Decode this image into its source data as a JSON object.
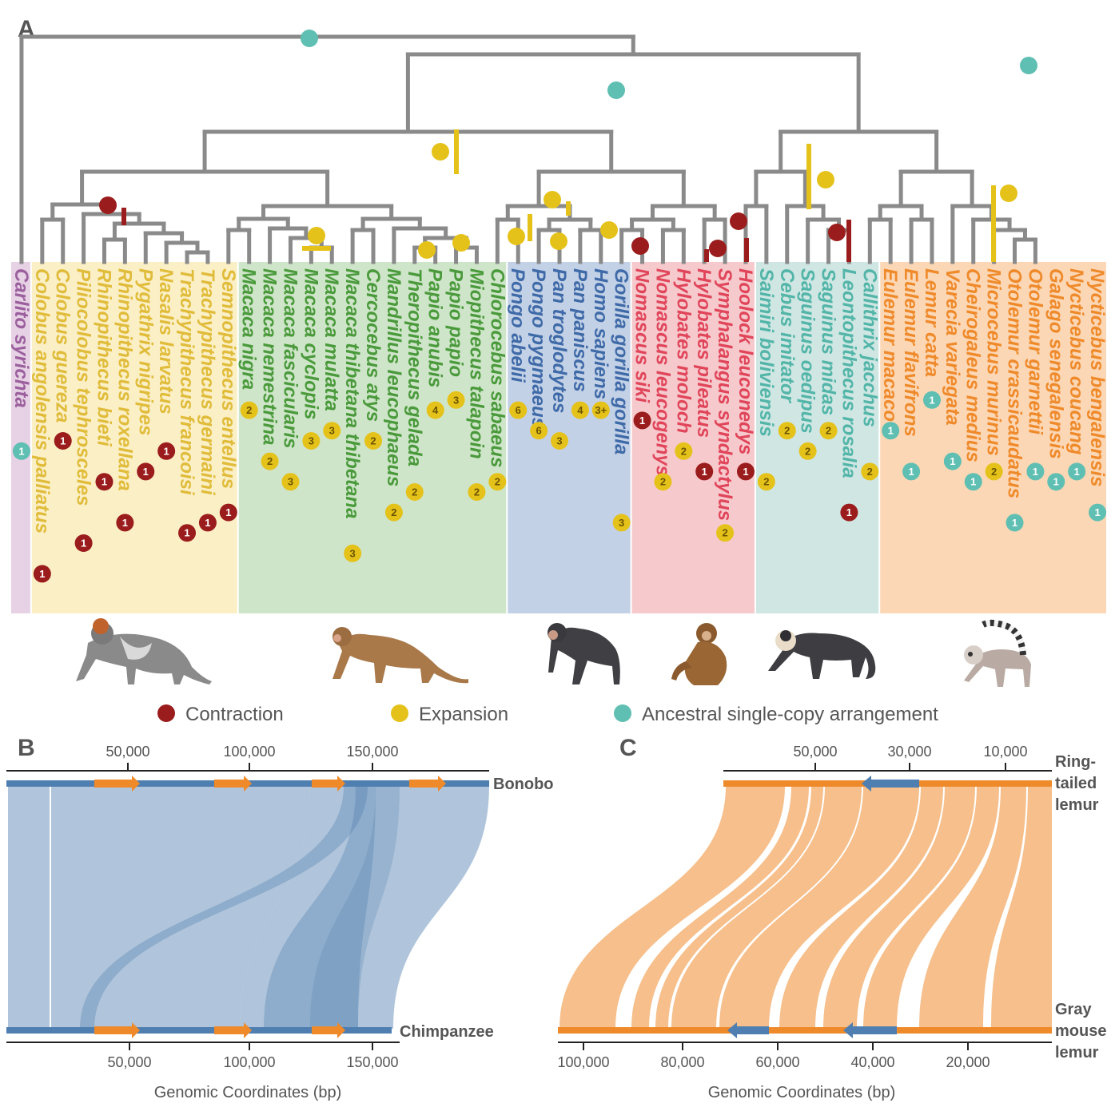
{
  "panels": {
    "a": "A",
    "b": "B",
    "c": "C"
  },
  "colors": {
    "tree": "#8a8a8a",
    "contraction": "#9b1c1c",
    "expansion": "#e5c21a",
    "ancestral": "#5fbfb2",
    "blue": "#4f7fb0",
    "orange": "#ef8a2b"
  },
  "clades": [
    {
      "color": "#9b5f9e",
      "bg": "#e6d2e4",
      "species": [
        {
          "name": "Carlito syrichta",
          "badge": {
            "type": "ancestral",
            "n": "1"
          }
        }
      ]
    },
    {
      "color": "#e0bc3a",
      "bg": "#fbefc6",
      "species": [
        {
          "name": "Colobus angolensis palliatus",
          "badge": {
            "type": "contraction",
            "n": "1"
          }
        },
        {
          "name": "Colobus guereza",
          "badge": {
            "type": "contraction",
            "n": "1"
          }
        },
        {
          "name": "Piliocolobus tephrosceles",
          "badge": {
            "type": "contraction",
            "n": "1"
          }
        },
        {
          "name": "Rhinopithecus bieti",
          "badge": {
            "type": "contraction",
            "n": "1"
          }
        },
        {
          "name": "Rhinopithecus roxellana",
          "badge": {
            "type": "contraction",
            "n": "1"
          }
        },
        {
          "name": "Pygathrix nigripes",
          "badge": {
            "type": "contraction",
            "n": "1"
          }
        },
        {
          "name": "Nasalis larvatus",
          "badge": {
            "type": "contraction",
            "n": "1"
          }
        },
        {
          "name": "Trachypithecus francoisi",
          "badge": {
            "type": "contraction",
            "n": "1"
          }
        },
        {
          "name": "Trachypithecus germaini",
          "badge": {
            "type": "contraction",
            "n": "1"
          }
        },
        {
          "name": "Semnopithecus entellus",
          "badge": {
            "type": "contraction",
            "n": "1"
          }
        }
      ]
    },
    {
      "color": "#4a9a3c",
      "bg": "#cfe5c9",
      "species": [
        {
          "name": "Macaca nigra",
          "badge": {
            "type": "expansion",
            "n": "2"
          }
        },
        {
          "name": "Macaca nemestrina",
          "badge": {
            "type": "expansion",
            "n": "2"
          }
        },
        {
          "name": "Macaca fascicularis",
          "badge": {
            "type": "expansion",
            "n": "3"
          }
        },
        {
          "name": "Macaca cyclopis",
          "badge": {
            "type": "expansion",
            "n": "3"
          }
        },
        {
          "name": "Macaca mulatta",
          "badge": {
            "type": "expansion",
            "n": "3"
          }
        },
        {
          "name": "Macaca thibetana thibetana",
          "badge": {
            "type": "expansion",
            "n": "3"
          }
        },
        {
          "name": "Cercocebus atys",
          "badge": {
            "type": "expansion",
            "n": "2"
          }
        },
        {
          "name": "Mandrillus leucophaeus",
          "badge": {
            "type": "expansion",
            "n": "2"
          }
        },
        {
          "name": "Theropithecus gelada",
          "badge": {
            "type": "expansion",
            "n": "2"
          }
        },
        {
          "name": "Papio anubis",
          "badge": {
            "type": "expansion",
            "n": "4"
          }
        },
        {
          "name": "Papio papio",
          "badge": {
            "type": "expansion",
            "n": "3"
          }
        },
        {
          "name": "Miopithecus talapoin",
          "badge": {
            "type": "expansion",
            "n": "2"
          }
        },
        {
          "name": "Chlorocebus sabaeus",
          "badge": {
            "type": "expansion",
            "n": "2"
          }
        }
      ]
    },
    {
      "color": "#3f6aa8",
      "bg": "#c3d1e6",
      "species": [
        {
          "name": "Pongo abelii",
          "badge": {
            "type": "expansion",
            "n": "6"
          }
        },
        {
          "name": "Pongo pygmaeus",
          "badge": {
            "type": "expansion",
            "n": "6"
          }
        },
        {
          "name": "Pan troglodytes",
          "badge": {
            "type": "expansion",
            "n": "3"
          }
        },
        {
          "name": "Pan paniscus",
          "badge": {
            "type": "expansion",
            "n": "4"
          }
        },
        {
          "name": "Homo sapiens",
          "badge": {
            "type": "expansion",
            "n": "3+"
          }
        },
        {
          "name": "Gorilla gorilla gorilla",
          "badge": {
            "type": "expansion",
            "n": "3"
          }
        }
      ]
    },
    {
      "color": "#e0455a",
      "bg": "#f6c9cc",
      "species": [
        {
          "name": "Nomascus siki",
          "badge": {
            "type": "contraction",
            "n": "1"
          }
        },
        {
          "name": "Nomascus leucogenys",
          "badge": {
            "type": "expansion",
            "n": "2"
          }
        },
        {
          "name": "Hylobates moloch",
          "badge": {
            "type": "expansion",
            "n": "2"
          }
        },
        {
          "name": "Hylobates pileatus",
          "badge": {
            "type": "contraction",
            "n": "1"
          }
        },
        {
          "name": "Symphalangus syndactylus",
          "badge": {
            "type": "expansion",
            "n": "2"
          }
        },
        {
          "name": "Hoolock leuconedys",
          "badge": {
            "type": "contraction",
            "n": "1"
          }
        }
      ]
    },
    {
      "color": "#52b5a8",
      "bg": "#cfe6e3",
      "species": [
        {
          "name": "Saimiri boliviensis",
          "badge": {
            "type": "expansion",
            "n": "2"
          }
        },
        {
          "name": "Cebus imitator",
          "badge": {
            "type": "expansion",
            "n": "2"
          }
        },
        {
          "name": "Saguinus oedipus",
          "badge": {
            "type": "expansion",
            "n": "2"
          }
        },
        {
          "name": "Saguinus midas",
          "badge": {
            "type": "expansion",
            "n": "2"
          }
        },
        {
          "name": "Leontopithecus rosalia",
          "badge": {
            "type": "contraction",
            "n": "1"
          }
        },
        {
          "name": "Callithrix jacchus",
          "badge": {
            "type": "expansion",
            "n": "2"
          }
        }
      ]
    },
    {
      "color": "#ef8a2b",
      "bg": "#fcd7b5",
      "species": [
        {
          "name": "Eulemur macaco",
          "badge": {
            "type": "ancestral",
            "n": "1"
          }
        },
        {
          "name": "Eulemur flavifrons",
          "badge": {
            "type": "ancestral",
            "n": "1"
          }
        },
        {
          "name": "Lemur catta",
          "badge": {
            "type": "ancestral",
            "n": "1"
          }
        },
        {
          "name": "Varecia variegata",
          "badge": {
            "type": "ancestral",
            "n": "1"
          }
        },
        {
          "name": "Cheirogaleus medius",
          "badge": {
            "type": "ancestral",
            "n": "1"
          }
        },
        {
          "name": "Microcebus murinus",
          "badge": {
            "type": "expansion",
            "n": "2"
          }
        },
        {
          "name": "Otolemur crassicaudatus",
          "badge": {
            "type": "ancestral",
            "n": "1"
          }
        },
        {
          "name": "Otolemur garnettii",
          "badge": {
            "type": "ancestral",
            "n": "1"
          }
        },
        {
          "name": "Galago senegalensis",
          "badge": {
            "type": "ancestral",
            "n": "1"
          }
        },
        {
          "name": "Nycticebus coucang",
          "badge": {
            "type": "ancestral",
            "n": "1"
          }
        },
        {
          "name": "Nycticebus bengalensis",
          "badge": {
            "type": "ancestral",
            "n": "1"
          }
        }
      ]
    }
  ],
  "legend": [
    {
      "type": "contraction",
      "label": "Contraction"
    },
    {
      "type": "expansion",
      "label": "Expansion"
    },
    {
      "type": "ancestral",
      "label": "Ancestral single-copy arrangement"
    }
  ],
  "panel_b": {
    "top_label": "Bonobo",
    "bottom_label": "Chimpanzee",
    "top_ticks": [
      "50,000",
      "100,000",
      "150,000"
    ],
    "bottom_ticks": [
      "50,000",
      "100,000",
      "150,000"
    ],
    "axis_title": "Genomic Coordinates (bp)"
  },
  "panel_c": {
    "top_label": [
      "Ring-",
      "tailed",
      "lemur"
    ],
    "bottom_label": [
      "Gray",
      "mouse",
      "lemur"
    ],
    "top_ticks": [
      "50,000",
      "30,000",
      "10,000"
    ],
    "bottom_ticks": [
      "100,000",
      "80,000",
      "60,000",
      "40,000",
      "20,000"
    ],
    "axis_title": "Genomic Coordinates (bp)"
  },
  "icons": [
    "colobus-icon",
    "macaque-icon",
    "chimpanzee-icon",
    "gibbon-icon",
    "capuchin-icon",
    "ring-tailed-lemur-icon"
  ]
}
